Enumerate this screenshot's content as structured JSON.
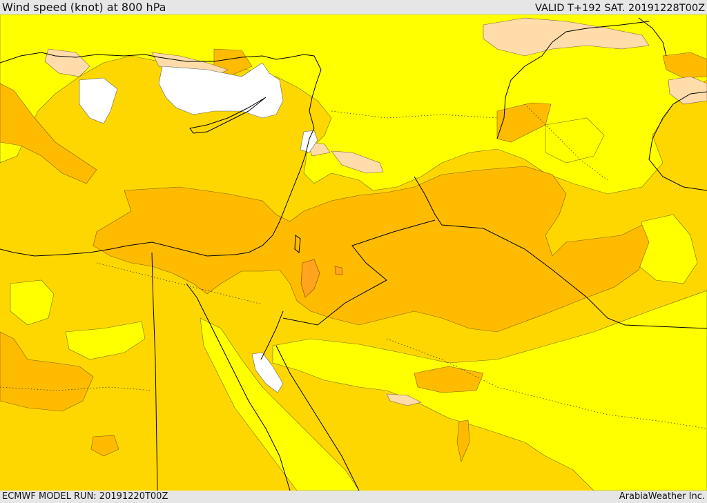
{
  "header": {
    "title": "Wind speed (knot) at 800 hPa",
    "valid": "VALID T+192 SAT. 20191228T00Z"
  },
  "footer": {
    "model_run": "ECMWF MODEL RUN: 20191220T00Z",
    "credit": "ArabiaWeather Inc."
  },
  "colors": {
    "level_white": "#ffffff",
    "level_peach": "#ffdcaa",
    "level_yellow": "#ffff00",
    "level_gold": "#ffd700",
    "level_amber": "#ffbb00",
    "level_orange": "#ffa41c",
    "coastline": "#000000",
    "borders": "#000000",
    "contours": "#666600"
  }
}
